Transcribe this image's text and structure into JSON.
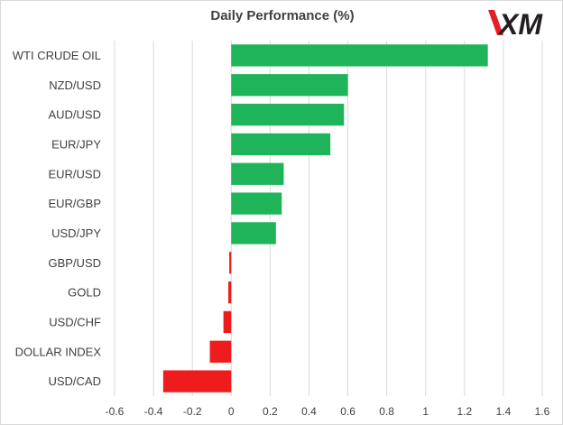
{
  "logo_text": "XM",
  "colors": {
    "positive": "#1fb45a",
    "negative": "#ee1c1c",
    "grid": "#d9d9d9",
    "text": "#404040",
    "logo_red": "#e41e26"
  },
  "chart_data": {
    "type": "bar",
    "orientation": "horizontal",
    "title": "Daily Performance  (%)",
    "xlabel": "",
    "ylabel": "",
    "categories": [
      "WTI CRUDE OIL",
      "NZD/USD",
      "AUD/USD",
      "EUR/JPY",
      "EUR/USD",
      "EUR/GBP",
      "USD/JPY",
      "GBP/USD",
      "GOLD",
      "USD/CHF",
      "DOLLAR INDEX",
      "USD/CAD"
    ],
    "values": [
      1.32,
      0.6,
      0.58,
      0.51,
      0.27,
      0.26,
      0.23,
      -0.01,
      -0.015,
      -0.04,
      -0.11,
      -0.35
    ],
    "xlim": [
      -0.6,
      1.6
    ],
    "ticks": [
      "-0.6",
      "-0.4",
      "-0.2",
      "0",
      "0.2",
      "0.4",
      "0.6",
      "0.8",
      "1",
      "1.2",
      "1.4",
      "1.6"
    ],
    "grid": true,
    "legend": "none"
  }
}
